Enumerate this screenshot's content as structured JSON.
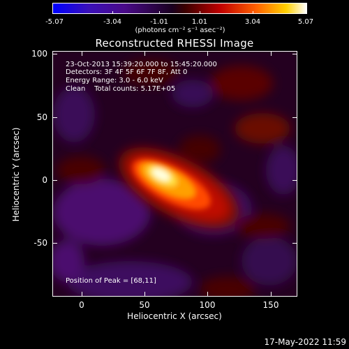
{
  "colorbar": {
    "tick_labels": [
      "-5.07",
      "-3.04",
      "-1.01",
      "1.01",
      "3.04",
      "5.07"
    ],
    "units": "(photons cm⁻² s⁻¹ asec⁻²)",
    "colors": [
      "#0000ff",
      "#4a0a8a",
      "#120018",
      "#c00000",
      "#ffa000",
      "#ffffff"
    ]
  },
  "title": "Reconstructed RHESSI Image",
  "annotations": {
    "line1": "23-Oct-2013 15:39:20.000 to 15:45:20.000",
    "line2": "Detectors: 3F 4F 5F 6F 7F 8F, Att 0",
    "line3": "Energy Range: 3.0 - 6.0 keV",
    "line4": "Clean    Total counts: 5.17E+05",
    "peak": "Position of Peak = [68,11]"
  },
  "axes": {
    "xlabel": "Heliocentric X (arcsec)",
    "ylabel": "Heliocentric Y (arcsec)",
    "xticks": [
      "0",
      "50",
      "100",
      "150"
    ],
    "yticks": [
      "100",
      "50",
      "0",
      "-50"
    ],
    "xlim": [
      -22,
      172
    ],
    "ylim": [
      -92,
      102
    ]
  },
  "timestamp": "17-May-2022 11:59"
}
